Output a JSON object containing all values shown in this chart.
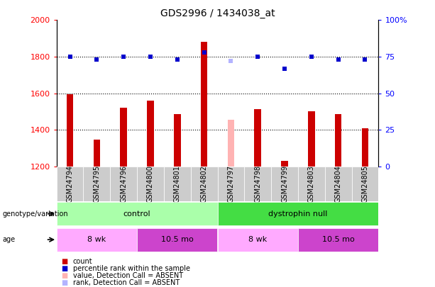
{
  "title": "GDS2996 / 1434038_at",
  "samples": [
    "GSM24794",
    "GSM24795",
    "GSM24796",
    "GSM24800",
    "GSM24801",
    "GSM24802",
    "GSM24797",
    "GSM24798",
    "GSM24799",
    "GSM24803",
    "GSM24804",
    "GSM24805"
  ],
  "counts": [
    1595,
    1345,
    1520,
    1560,
    1485,
    1880,
    1455,
    1515,
    1230,
    1500,
    1485,
    1410
  ],
  "ranks": [
    75,
    73,
    75,
    75,
    73,
    78,
    72,
    75,
    67,
    75,
    73,
    73
  ],
  "absent_indices": [
    6
  ],
  "ylim_left": [
    1200,
    2000
  ],
  "ylim_right": [
    0,
    100
  ],
  "yticks_left": [
    1200,
    1400,
    1600,
    1800,
    2000
  ],
  "yticks_right": [
    0,
    25,
    50,
    75,
    100
  ],
  "bar_color": "#cc0000",
  "absent_bar_color": "#ffb3b3",
  "rank_color": "#0000cc",
  "absent_rank_color": "#b3b3ff",
  "genotype_control_color": "#aaffaa",
  "genotype_null_color": "#44dd44",
  "age_8wk_color": "#ffaaff",
  "age_105mo_color": "#cc44cc",
  "label_bg_color": "#cccccc",
  "bar_width": 0.25,
  "legend_items": [
    {
      "color": "#cc0000",
      "label": "count"
    },
    {
      "color": "#0000cc",
      "label": "percentile rank within the sample"
    },
    {
      "color": "#ffb3b3",
      "label": "value, Detection Call = ABSENT"
    },
    {
      "color": "#b3b3ff",
      "label": "rank, Detection Call = ABSENT"
    }
  ]
}
